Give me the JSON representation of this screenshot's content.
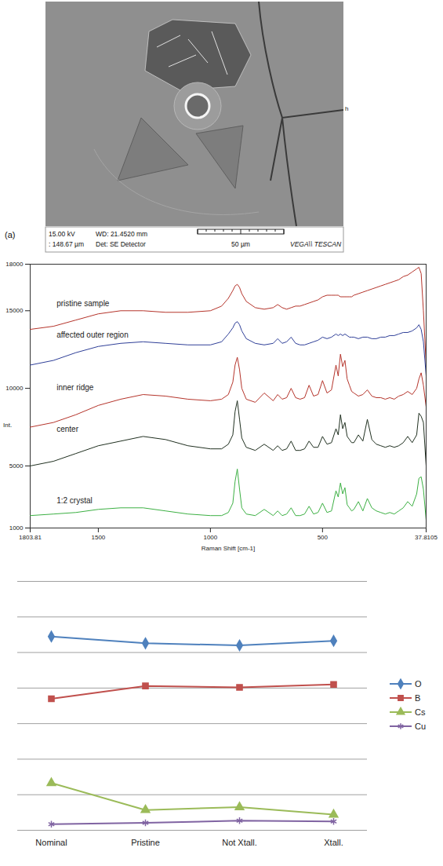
{
  "image_panel": {
    "panel_label": "(a)",
    "info_lines": [
      [
        "15.00 kV",
        "WD: 21.4520 mm"
      ],
      [
        ": 148.67 µm",
        "Det: SE Detector"
      ]
    ],
    "scale_bar": "50 µm",
    "brand": "VEGA\\\\ TESCAN",
    "edge_mark": "h"
  },
  "chart_data": [
    {
      "type": "line",
      "x_label": "Raman Shift [cm-1]",
      "y_label": "Int.",
      "x": [
        1803.81,
        1700,
        1600,
        1500,
        1400,
        1300,
        1200,
        1100,
        1000,
        950,
        920,
        900,
        890,
        880,
        870,
        860,
        840,
        800,
        760,
        720,
        700,
        680,
        660,
        640,
        620,
        600,
        580,
        560,
        540,
        520,
        500,
        480,
        460,
        440,
        430,
        420,
        410,
        400,
        390,
        380,
        370,
        360,
        340,
        320,
        300,
        280,
        260,
        240,
        220,
        200,
        180,
        160,
        140,
        120,
        100,
        80,
        70,
        60,
        50,
        37.8105
      ],
      "xlim": [
        1803.81,
        37.8105
      ],
      "xticks": [
        1803.81,
        1500,
        1000,
        500,
        37.8105
      ],
      "ylim": [
        1000,
        18000
      ],
      "yticks": [
        1000,
        5000,
        10000,
        15000,
        18000
      ],
      "series": [
        {
          "name": "pristine sample",
          "color": "#b5342b",
          "values": [
            13800,
            14000,
            14400,
            14800,
            15000,
            15000,
            14900,
            14900,
            15000,
            15300,
            15800,
            16300,
            16600,
            16700,
            16500,
            16100,
            15600,
            15200,
            15100,
            15200,
            15400,
            15200,
            15100,
            15200,
            15300,
            15300,
            15400,
            15500,
            15600,
            15700,
            15900,
            16000,
            16000,
            16000,
            16000,
            15900,
            15900,
            15900,
            15900,
            15900,
            15900,
            16000,
            16100,
            16200,
            16300,
            16400,
            16500,
            16600,
            16700,
            16800,
            16900,
            17000,
            17200,
            17300,
            17500,
            17700,
            17800,
            17400,
            15000,
            11500
          ]
        },
        {
          "name": "affected outer region",
          "color": "#2f3f98",
          "values": [
            11500,
            11800,
            12300,
            12700,
            12900,
            13000,
            12900,
            12800,
            12800,
            13000,
            13500,
            13900,
            14200,
            14300,
            14100,
            13700,
            13200,
            12900,
            12800,
            12900,
            13200,
            12900,
            13000,
            13300,
            12900,
            12800,
            12800,
            12900,
            13000,
            13100,
            13300,
            13200,
            13300,
            13500,
            13400,
            13500,
            13400,
            13500,
            13400,
            13300,
            13300,
            13300,
            13200,
            13300,
            13300,
            13200,
            13200,
            13300,
            13300,
            13400,
            13400,
            13500,
            13600,
            13600,
            13700,
            13900,
            14100,
            13800,
            13000,
            10800
          ]
        },
        {
          "name": "inner ridge",
          "color": "#b5342b",
          "values": [
            7500,
            7800,
            8300,
            8900,
            9300,
            9600,
            9500,
            9300,
            9200,
            9300,
            9600,
            10400,
            11500,
            12000,
            11200,
            10000,
            9300,
            9100,
            9700,
            9200,
            9600,
            9300,
            9400,
            10000,
            9400,
            9300,
            9400,
            10200,
            9500,
            9600,
            10500,
            9700,
            9900,
            11500,
            10800,
            12200,
            11400,
            11800,
            10600,
            10200,
            9800,
            9700,
            9500,
            9600,
            9900,
            9500,
            9400,
            9400,
            9300,
            9400,
            9300,
            9500,
            9600,
            9800,
            9600,
            10000,
            10600,
            11000,
            10200,
            8800
          ]
        },
        {
          "name": "center",
          "color": "#203020",
          "values": [
            5000,
            5300,
            5800,
            6300,
            6600,
            6900,
            6700,
            6300,
            6100,
            6100,
            6400,
            7000,
            8500,
            9200,
            8000,
            6800,
            6200,
            6000,
            6400,
            6000,
            6300,
            6000,
            6100,
            6600,
            6000,
            6000,
            6100,
            6600,
            6200,
            6200,
            6900,
            6400,
            6500,
            7400,
            7000,
            8300,
            7400,
            7800,
            6900,
            6700,
            6500,
            6500,
            7000,
            6600,
            8000,
            6700,
            6400,
            6300,
            6200,
            6300,
            6200,
            6300,
            6500,
            6900,
            6500,
            7000,
            8400,
            8200,
            7800,
            5000
          ]
        },
        {
          "name": "1:2 crystal",
          "color": "#3cb043",
          "values": [
            1800,
            1900,
            2000,
            2200,
            2300,
            2300,
            2100,
            1900,
            1800,
            1800,
            2000,
            2600,
            4000,
            4800,
            3500,
            2300,
            1900,
            1800,
            2200,
            1800,
            2100,
            1800,
            1900,
            2300,
            1800,
            1800,
            1900,
            2400,
            1900,
            2000,
            2600,
            2000,
            2100,
            3400,
            3000,
            3900,
            3200,
            3600,
            2500,
            2300,
            2100,
            2200,
            2700,
            2100,
            2900,
            2300,
            2100,
            2000,
            1900,
            2000,
            1900,
            2100,
            2300,
            2700,
            2400,
            3200,
            4200,
            4300,
            3500,
            1500
          ]
        }
      ]
    },
    {
      "type": "line",
      "categories": [
        "Nominal",
        "Pristine",
        "Not Xtall.",
        "Xtall."
      ],
      "ylim": [
        0,
        70
      ],
      "yticks": [
        0,
        10,
        20,
        30,
        40,
        50,
        60,
        70
      ],
      "grid": true,
      "tick_labels": "x",
      "legend": "right",
      "series": [
        {
          "name": "O",
          "color": "#4f81bd",
          "marker": "diamond",
          "values": [
            54.5,
            52.6,
            52,
            53.3
          ]
        },
        {
          "name": "B",
          "color": "#c0504d",
          "marker": "square",
          "values": [
            37,
            40.6,
            40.2,
            41
          ]
        },
        {
          "name": "Cs",
          "color": "#9bbb59",
          "marker": "triangle",
          "values": [
            13.3,
            5.7,
            6.5,
            4.4
          ]
        },
        {
          "name": "Cu",
          "color": "#8064a2",
          "marker": "asterisk",
          "values": [
            1.7,
            2.1,
            2.7,
            2.5
          ]
        }
      ]
    }
  ]
}
